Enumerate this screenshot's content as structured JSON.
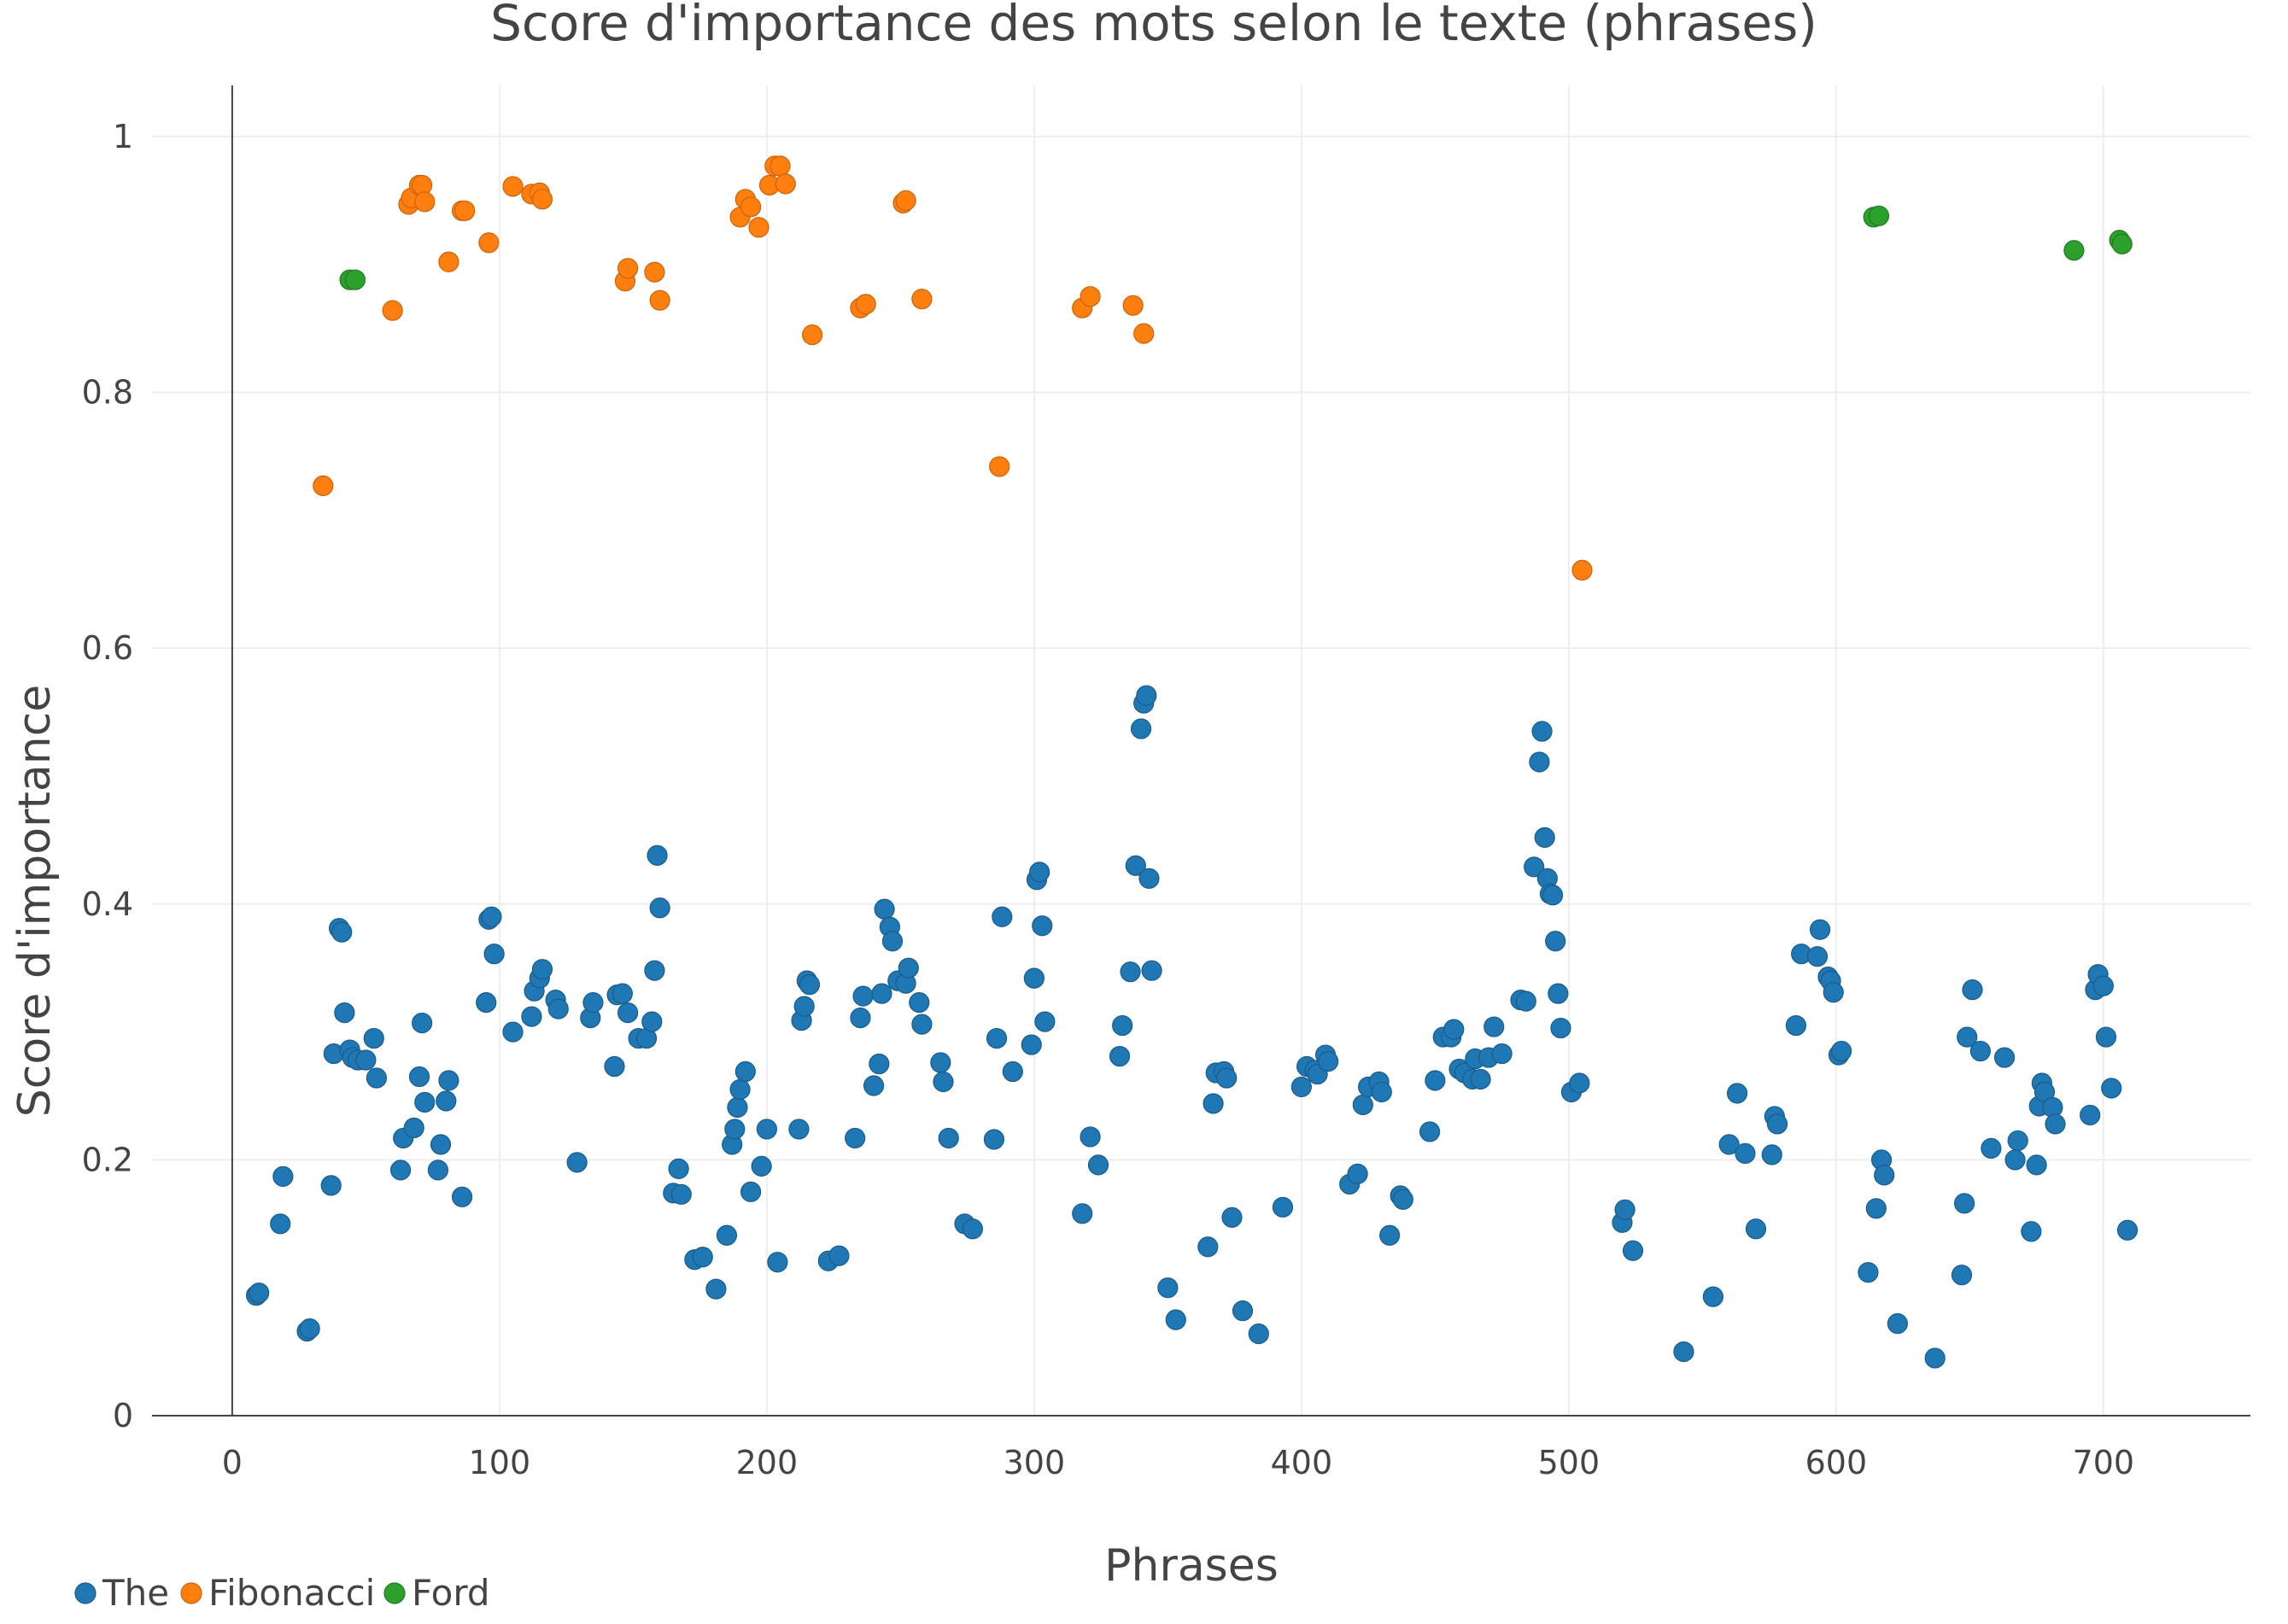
{
  "chart_data": {
    "type": "scatter",
    "title": "Score d'importance des mots selon le texte (phrases)",
    "xlabel": "Phrases",
    "ylabel": "Score d'importance",
    "xlim": [
      -30,
      755
    ],
    "ylim": [
      0,
      1.04
    ],
    "xticks": [
      0,
      100,
      200,
      300,
      400,
      500,
      600,
      700
    ],
    "xtick_labels": [
      "0",
      "100",
      "200",
      "300",
      "400",
      "500",
      "600",
      "700"
    ],
    "yticks": [
      0,
      0.2,
      0.4,
      0.6,
      0.8,
      1
    ],
    "ytick_labels": [
      "0",
      "0.2",
      "0.4",
      "0.6",
      "0.8",
      "1"
    ],
    "grid": true,
    "legend_position": "bottom-left",
    "series": [
      {
        "name": "The",
        "color": "#1f77b4",
        "points": [
          [
            9,
            0.094
          ],
          [
            10,
            0.096
          ],
          [
            18,
            0.15
          ],
          [
            19,
            0.187
          ],
          [
            28,
            0.066
          ],
          [
            29,
            0.068
          ],
          [
            37,
            0.18
          ],
          [
            38,
            0.283
          ],
          [
            40,
            0.381
          ],
          [
            41,
            0.378
          ],
          [
            42,
            0.315
          ],
          [
            44,
            0.286
          ],
          [
            45,
            0.28
          ],
          [
            47,
            0.278
          ],
          [
            50,
            0.278
          ],
          [
            53,
            0.295
          ],
          [
            54,
            0.264
          ],
          [
            63,
            0.192
          ],
          [
            64,
            0.217
          ],
          [
            68,
            0.225
          ],
          [
            70,
            0.265
          ],
          [
            71,
            0.307
          ],
          [
            72,
            0.245
          ],
          [
            77,
            0.192
          ],
          [
            78,
            0.212
          ],
          [
            80,
            0.246
          ],
          [
            81,
            0.262
          ],
          [
            86,
            0.171
          ],
          [
            95,
            0.323
          ],
          [
            96,
            0.388
          ],
          [
            97,
            0.39
          ],
          [
            98,
            0.361
          ],
          [
            105,
            0.3
          ],
          [
            112,
            0.312
          ],
          [
            113,
            0.332
          ],
          [
            115,
            0.342
          ],
          [
            116,
            0.349
          ],
          [
            121,
            0.325
          ],
          [
            122,
            0.318
          ],
          [
            129,
            0.198
          ],
          [
            134,
            0.311
          ],
          [
            135,
            0.323
          ],
          [
            143,
            0.273
          ],
          [
            144,
            0.329
          ],
          [
            146,
            0.33
          ],
          [
            148,
            0.315
          ],
          [
            152,
            0.295
          ],
          [
            155,
            0.295
          ],
          [
            157,
            0.308
          ],
          [
            158,
            0.348
          ],
          [
            159,
            0.438
          ],
          [
            160,
            0.397
          ],
          [
            165,
            0.174
          ],
          [
            167,
            0.193
          ],
          [
            168,
            0.173
          ],
          [
            173,
            0.122
          ],
          [
            176,
            0.124
          ],
          [
            181,
            0.099
          ],
          [
            185,
            0.141
          ],
          [
            187,
            0.212
          ],
          [
            188,
            0.224
          ],
          [
            189,
            0.241
          ],
          [
            190,
            0.255
          ],
          [
            192,
            0.269
          ],
          [
            194,
            0.175
          ],
          [
            198,
            0.195
          ],
          [
            200,
            0.224
          ],
          [
            204,
            0.12
          ],
          [
            212,
            0.224
          ],
          [
            213,
            0.309
          ],
          [
            214,
            0.32
          ],
          [
            215,
            0.34
          ],
          [
            216,
            0.337
          ],
          [
            223,
            0.121
          ],
          [
            227,
            0.125
          ],
          [
            233,
            0.217
          ],
          [
            235,
            0.311
          ],
          [
            236,
            0.328
          ],
          [
            240,
            0.258
          ],
          [
            242,
            0.275
          ],
          [
            243,
            0.33
          ],
          [
            244,
            0.396
          ],
          [
            246,
            0.382
          ],
          [
            247,
            0.371
          ],
          [
            249,
            0.34
          ],
          [
            252,
            0.338
          ],
          [
            253,
            0.35
          ],
          [
            257,
            0.323
          ],
          [
            258,
            0.306
          ],
          [
            265,
            0.276
          ],
          [
            266,
            0.261
          ],
          [
            268,
            0.217
          ],
          [
            274,
            0.15
          ],
          [
            277,
            0.146
          ],
          [
            285,
            0.216
          ],
          [
            286,
            0.295
          ],
          [
            288,
            0.39
          ],
          [
            292,
            0.269
          ],
          [
            299,
            0.29
          ],
          [
            300,
            0.342
          ],
          [
            301,
            0.419
          ],
          [
            302,
            0.425
          ],
          [
            303,
            0.383
          ],
          [
            304,
            0.308
          ],
          [
            318,
            0.158
          ],
          [
            321,
            0.218
          ],
          [
            324,
            0.196
          ],
          [
            332,
            0.281
          ],
          [
            333,
            0.305
          ],
          [
            336,
            0.347
          ],
          [
            338,
            0.43
          ],
          [
            340,
            0.537
          ],
          [
            341,
            0.557
          ],
          [
            342,
            0.563
          ],
          [
            343,
            0.42
          ],
          [
            344,
            0.348
          ],
          [
            350,
            0.1
          ],
          [
            353,
            0.075
          ],
          [
            365,
            0.132
          ],
          [
            367,
            0.244
          ],
          [
            368,
            0.268
          ],
          [
            371,
            0.269
          ],
          [
            372,
            0.264
          ],
          [
            374,
            0.155
          ],
          [
            378,
            0.082
          ],
          [
            384,
            0.064
          ],
          [
            393,
            0.163
          ],
          [
            400,
            0.257
          ],
          [
            402,
            0.273
          ],
          [
            405,
            0.27
          ],
          [
            406,
            0.267
          ],
          [
            409,
            0.282
          ],
          [
            410,
            0.277
          ],
          [
            418,
            0.181
          ],
          [
            421,
            0.189
          ],
          [
            423,
            0.243
          ],
          [
            425,
            0.257
          ],
          [
            429,
            0.261
          ],
          [
            430,
            0.253
          ],
          [
            433,
            0.141
          ],
          [
            437,
            0.172
          ],
          [
            438,
            0.169
          ],
          [
            448,
            0.222
          ],
          [
            450,
            0.262
          ],
          [
            453,
            0.296
          ],
          [
            456,
            0.296
          ],
          [
            457,
            0.302
          ],
          [
            459,
            0.271
          ],
          [
            461,
            0.268
          ],
          [
            464,
            0.263
          ],
          [
            465,
            0.279
          ],
          [
            467,
            0.263
          ],
          [
            470,
            0.28
          ],
          [
            472,
            0.304
          ],
          [
            475,
            0.283
          ],
          [
            482,
            0.325
          ],
          [
            484,
            0.324
          ],
          [
            487,
            0.429
          ],
          [
            489,
            0.511
          ],
          [
            490,
            0.535
          ],
          [
            491,
            0.452
          ],
          [
            492,
            0.42
          ],
          [
            493,
            0.408
          ],
          [
            494,
            0.407
          ],
          [
            495,
            0.371
          ],
          [
            496,
            0.33
          ],
          [
            497,
            0.303
          ],
          [
            501,
            0.253
          ],
          [
            504,
            0.26
          ],
          [
            520,
            0.151
          ],
          [
            521,
            0.161
          ],
          [
            524,
            0.129
          ],
          [
            543,
            0.05
          ],
          [
            554,
            0.093
          ],
          [
            560,
            0.212
          ],
          [
            563,
            0.252
          ],
          [
            566,
            0.205
          ],
          [
            570,
            0.146
          ],
          [
            576,
            0.204
          ],
          [
            577,
            0.234
          ],
          [
            578,
            0.228
          ],
          [
            585,
            0.305
          ],
          [
            587,
            0.361
          ],
          [
            593,
            0.359
          ],
          [
            594,
            0.38
          ],
          [
            597,
            0.343
          ],
          [
            598,
            0.34
          ],
          [
            599,
            0.331
          ],
          [
            601,
            0.282
          ],
          [
            602,
            0.285
          ],
          [
            612,
            0.112
          ],
          [
            615,
            0.162
          ],
          [
            617,
            0.2
          ],
          [
            618,
            0.188
          ],
          [
            623,
            0.072
          ],
          [
            637,
            0.045
          ],
          [
            647,
            0.11
          ],
          [
            648,
            0.166
          ],
          [
            649,
            0.296
          ],
          [
            651,
            0.333
          ],
          [
            654,
            0.285
          ],
          [
            658,
            0.209
          ],
          [
            663,
            0.28
          ],
          [
            667,
            0.2
          ],
          [
            668,
            0.215
          ],
          [
            673,
            0.144
          ],
          [
            675,
            0.196
          ],
          [
            676,
            0.242
          ],
          [
            677,
            0.26
          ],
          [
            678,
            0.253
          ],
          [
            681,
            0.241
          ],
          [
            682,
            0.228
          ],
          [
            695,
            0.235
          ],
          [
            697,
            0.333
          ],
          [
            698,
            0.345
          ],
          [
            700,
            0.336
          ],
          [
            701,
            0.296
          ],
          [
            703,
            0.256
          ],
          [
            709,
            0.145
          ]
        ]
      },
      {
        "name": "Fibonacci",
        "color": "#ff7f0e",
        "points": [
          [
            34,
            0.727
          ],
          [
            60,
            0.864
          ],
          [
            66,
            0.947
          ],
          [
            67,
            0.952
          ],
          [
            70,
            0.962
          ],
          [
            71,
            0.962
          ],
          [
            72,
            0.949
          ],
          [
            81,
            0.902
          ],
          [
            86,
            0.942
          ],
          [
            87,
            0.942
          ],
          [
            96,
            0.917
          ],
          [
            105,
            0.961
          ],
          [
            112,
            0.955
          ],
          [
            115,
            0.956
          ],
          [
            116,
            0.951
          ],
          [
            147,
            0.887
          ],
          [
            148,
            0.897
          ],
          [
            158,
            0.894
          ],
          [
            160,
            0.872
          ],
          [
            190,
            0.937
          ],
          [
            192,
            0.951
          ],
          [
            194,
            0.945
          ],
          [
            197,
            0.929
          ],
          [
            201,
            0.962
          ],
          [
            203,
            0.977
          ],
          [
            205,
            0.977
          ],
          [
            207,
            0.963
          ],
          [
            217,
            0.845
          ],
          [
            235,
            0.866
          ],
          [
            237,
            0.869
          ],
          [
            251,
            0.948
          ],
          [
            252,
            0.95
          ],
          [
            258,
            0.873
          ],
          [
            287,
            0.742
          ],
          [
            318,
            0.866
          ],
          [
            321,
            0.875
          ],
          [
            337,
            0.868
          ],
          [
            341,
            0.846
          ],
          [
            505,
            0.661
          ]
        ]
      },
      {
        "name": "Ford",
        "color": "#2ca02c",
        "points": [
          [
            44,
            0.888
          ],
          [
            46,
            0.888
          ],
          [
            614,
            0.937
          ],
          [
            616,
            0.938
          ],
          [
            689,
            0.911
          ],
          [
            706,
            0.919
          ],
          [
            707,
            0.916
          ]
        ]
      }
    ]
  }
}
